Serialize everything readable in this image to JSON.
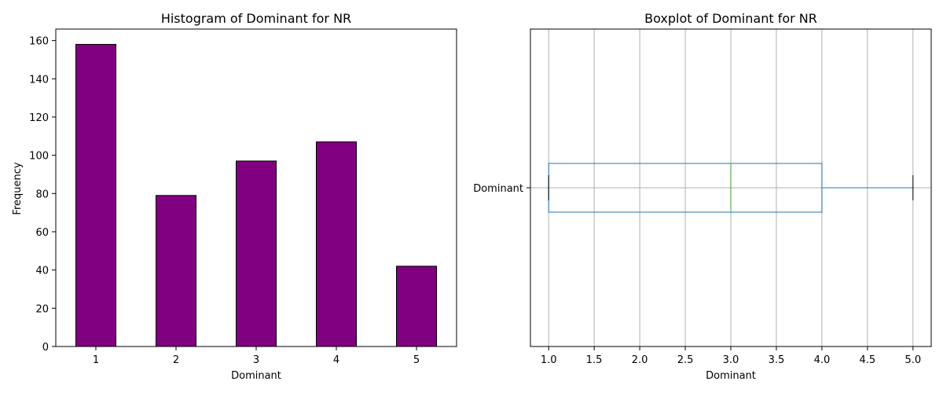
{
  "chart_data": [
    {
      "type": "bar",
      "title": "Histogram of Dominant for NR",
      "xlabel": "Dominant",
      "ylabel": "Frequency",
      "categories": [
        "1",
        "2",
        "3",
        "4",
        "5"
      ],
      "values": [
        158,
        79,
        97,
        107,
        42
      ],
      "ylim": [
        0,
        166
      ],
      "yticks": [
        0,
        20,
        40,
        60,
        80,
        100,
        120,
        140,
        160
      ],
      "grid": false,
      "bar_color": "#800080",
      "edge_color": "#000000"
    },
    {
      "type": "boxplot",
      "title": "Boxplot of Dominant for NR",
      "xlabel": "Dominant",
      "category": "Dominant",
      "whisker_low": 1.0,
      "q1": 1.0,
      "median": 3.0,
      "q3": 4.0,
      "whisker_high": 5.0,
      "xlim": [
        0.8,
        5.2
      ],
      "xticks": [
        "1.0",
        "1.5",
        "2.0",
        "2.5",
        "3.0",
        "3.5",
        "4.0",
        "4.5",
        "5.0"
      ],
      "grid": true,
      "box_color": "#1f77b4",
      "median_color": "#2ca02c"
    }
  ]
}
